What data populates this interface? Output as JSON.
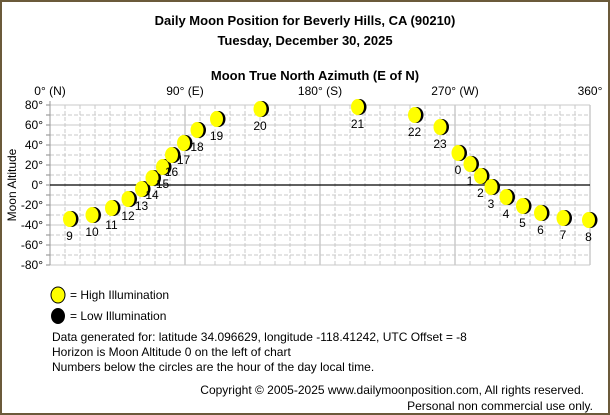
{
  "chart_data": {
    "type": "scatter",
    "title": "Daily Moon Position for Beverly Hills, CA (90210)",
    "subtitle": "Tuesday, December 30, 2025",
    "xlabel": "Moon True North Azimuth (E of N)",
    "ylabel": "Moon Altitude",
    "xlim": [
      0,
      360
    ],
    "ylim": [
      -80,
      80
    ],
    "x_ticks": [
      {
        "value": 0,
        "label": "0° (N)"
      },
      {
        "value": 90,
        "label": "90° (E)"
      },
      {
        "value": 180,
        "label": "180° (S)"
      },
      {
        "value": 270,
        "label": "270° (W)"
      },
      {
        "value": 360,
        "label": "360°"
      }
    ],
    "y_ticks": [
      {
        "value": 80,
        "label": "80°"
      },
      {
        "value": 60,
        "label": "60°"
      },
      {
        "value": 40,
        "label": "40°"
      },
      {
        "value": 20,
        "label": "20°"
      },
      {
        "value": 0,
        "label": "0°"
      },
      {
        "value": -20,
        "label": "-20°"
      },
      {
        "value": -40,
        "label": "-40°"
      },
      {
        "value": -60,
        "label": "-60°"
      },
      {
        "value": -80,
        "label": "-80°"
      }
    ],
    "grid": true,
    "points": [
      {
        "hour": "0",
        "azimuth": 272,
        "altitude": 32,
        "illumination": "high"
      },
      {
        "hour": "1",
        "azimuth": 280,
        "altitude": 21,
        "illumination": "high"
      },
      {
        "hour": "2",
        "azimuth": 287,
        "altitude": 9,
        "illumination": "high"
      },
      {
        "hour": "3",
        "azimuth": 294,
        "altitude": -2,
        "illumination": "high"
      },
      {
        "hour": "4",
        "azimuth": 304,
        "altitude": -12,
        "illumination": "high"
      },
      {
        "hour": "5",
        "azimuth": 315,
        "altitude": -21,
        "illumination": "high"
      },
      {
        "hour": "6",
        "azimuth": 327,
        "altitude": -28,
        "illumination": "high"
      },
      {
        "hour": "7",
        "azimuth": 342,
        "altitude": -33,
        "illumination": "high"
      },
      {
        "hour": "8",
        "azimuth": 359,
        "altitude": -35,
        "illumination": "high"
      },
      {
        "hour": "9",
        "azimuth": 13,
        "altitude": -34,
        "illumination": "high"
      },
      {
        "hour": "10",
        "azimuth": 28,
        "altitude": -30,
        "illumination": "high"
      },
      {
        "hour": "11",
        "azimuth": 41,
        "altitude": -23,
        "illumination": "high"
      },
      {
        "hour": "12",
        "azimuth": 52,
        "altitude": -14,
        "illumination": "high"
      },
      {
        "hour": "13",
        "azimuth": 61,
        "altitude": -4,
        "illumination": "high"
      },
      {
        "hour": "14",
        "azimuth": 68,
        "altitude": 7,
        "illumination": "high"
      },
      {
        "hour": "15",
        "azimuth": 75,
        "altitude": 18,
        "illumination": "high"
      },
      {
        "hour": "16",
        "azimuth": 81,
        "altitude": 30,
        "illumination": "high"
      },
      {
        "hour": "17",
        "azimuth": 89,
        "altitude": 42,
        "illumination": "high"
      },
      {
        "hour": "18",
        "azimuth": 98,
        "altitude": 55,
        "illumination": "high"
      },
      {
        "hour": "19",
        "azimuth": 111,
        "altitude": 66,
        "illumination": "high"
      },
      {
        "hour": "20",
        "azimuth": 140,
        "altitude": 76,
        "illumination": "high"
      },
      {
        "hour": "21",
        "azimuth": 205,
        "altitude": 78,
        "illumination": "high"
      },
      {
        "hour": "22",
        "azimuth": 243,
        "altitude": 70,
        "illumination": "high"
      },
      {
        "hour": "23",
        "azimuth": 260,
        "altitude": 58,
        "illumination": "high"
      }
    ],
    "legend": [
      {
        "label": "= High Illumination",
        "color": "#ffff00"
      },
      {
        "label": "= Low Illumination",
        "color": "#000000"
      }
    ]
  },
  "notes": [
    "Data generated for: latitude 34.096629, longitude -118.41242, UTC Offset = -8",
    "Horizon is Moon Altitude 0 on the left of chart",
    "Numbers below the circles are the hour of the day local time."
  ],
  "footer": {
    "copyright": "Copyright © 2005-2025 www.dailymoonposition.com, All rights reserved.",
    "usage": "Personal non commercial use only."
  },
  "colors": {
    "frame": "#6b5a3a",
    "grid": "#c8c8c8",
    "moon": "#ffff00",
    "shadow": "#000000"
  }
}
